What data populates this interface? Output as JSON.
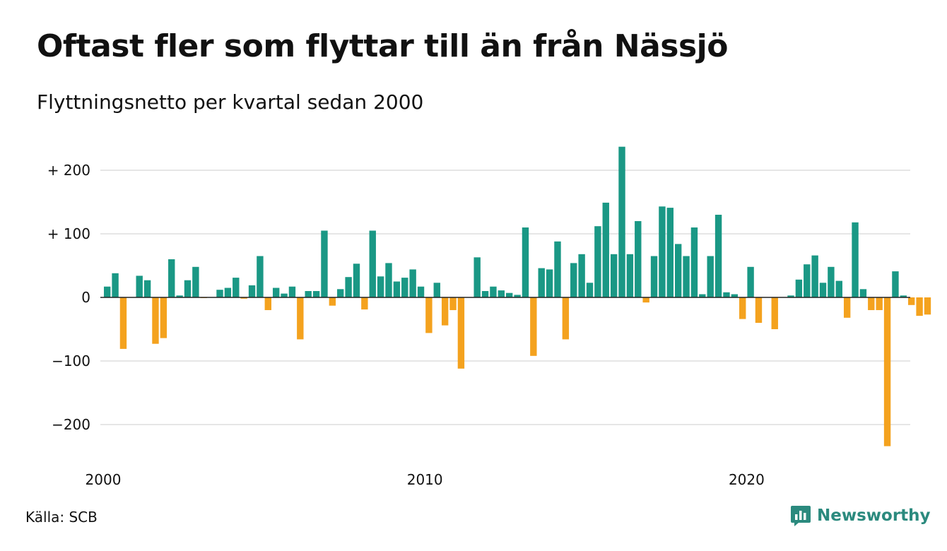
{
  "header": {
    "title": "Oftast fler som flyttar till än från Nässjö",
    "subtitle": "Flyttningsnetto per kvartal sedan 2000"
  },
  "footer": {
    "source": "Källa: SCB",
    "brand": "Newsworthy",
    "brand_icon": "newsworthy-logo-icon"
  },
  "colors": {
    "positive": "#1a9885",
    "negative": "#f4a21e",
    "grid": "#dddddd",
    "brand": "#2b8a7e"
  },
  "chart_data": {
    "type": "bar",
    "title": "Oftast fler som flyttar till än från Nässjö",
    "subtitle": "Flyttningsnetto per kvartal sedan 2000",
    "start_year": 2000,
    "x_ticks": [
      "2000",
      "2010",
      "2020"
    ],
    "y_ticks": [
      {
        "value": 200,
        "label": "+ 200"
      },
      {
        "value": 100,
        "label": "+ 100"
      },
      {
        "value": 0,
        "label": "0"
      },
      {
        "value": -100,
        "label": "−100"
      },
      {
        "value": -200,
        "label": "−200"
      }
    ],
    "ylim": [
      -250,
      240
    ],
    "grid": true,
    "values": [
      17,
      38,
      -81,
      0,
      34,
      27,
      -73,
      -64,
      60,
      3,
      27,
      48,
      -1,
      0,
      12,
      15,
      31,
      -2,
      19,
      65,
      -20,
      15,
      6,
      17,
      -66,
      10,
      10,
      105,
      -13,
      13,
      32,
      53,
      -19,
      105,
      33,
      54,
      25,
      31,
      44,
      17,
      -56,
      23,
      -44,
      -20,
      -112,
      0,
      63,
      10,
      17,
      11,
      7,
      4,
      110,
      -92,
      46,
      44,
      88,
      -66,
      54,
      68,
      23,
      112,
      149,
      68,
      237,
      68,
      120,
      -8,
      65,
      143,
      141,
      84,
      65,
      110,
      5,
      65,
      130,
      8,
      5,
      -34,
      48,
      -40,
      0,
      -50,
      0,
      3,
      28,
      52,
      66,
      23,
      48,
      26,
      -32,
      118,
      13,
      -20,
      -20,
      -234,
      41,
      3,
      -12,
      -29,
      -27
    ],
    "value_colors": {
      "positive": "#1a9885",
      "negative": "#f4a21e"
    }
  }
}
